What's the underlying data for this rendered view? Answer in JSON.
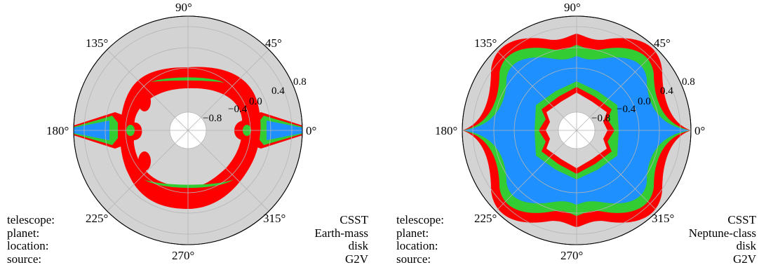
{
  "chart_data": [
    {
      "type": "polar-contour",
      "theta_ticks": [
        "0°",
        "45°",
        "90°",
        "135°",
        "180°",
        "225°",
        "270°",
        "315°"
      ],
      "r_ticks": [
        "−0.8",
        "−0.4",
        "0.0",
        "0.4",
        "0.8"
      ],
      "r_range": [
        -1.2,
        1.0
      ],
      "colors": {
        "background": "#d3d3d3",
        "red": "#ff0000",
        "green": "#33cc33",
        "blue": "#1e90ff",
        "hole": "#ffffff"
      },
      "info_labels": [
        "telescope:",
        "planet:",
        "location:",
        "source:"
      ],
      "info_values": [
        "CSST",
        "Earth-mass",
        "disk",
        "G2V"
      ]
    },
    {
      "type": "polar-contour",
      "theta_ticks": [
        "0°",
        "45°",
        "90°",
        "135°",
        "180°",
        "225°",
        "270°",
        "315°"
      ],
      "r_ticks": [
        "−0.8",
        "−0.4",
        "0.0",
        "0.4",
        "0.8"
      ],
      "r_range": [
        -1.2,
        1.0
      ],
      "colors": {
        "background": "#d3d3d3",
        "red": "#ff0000",
        "green": "#33cc33",
        "blue": "#1e90ff",
        "hole": "#ffffff"
      },
      "info_labels": [
        "telescope:",
        "planet:",
        "location:",
        "source:"
      ],
      "info_values": [
        "CSST",
        "Neptune-class",
        "disk",
        "G2V"
      ]
    }
  ]
}
